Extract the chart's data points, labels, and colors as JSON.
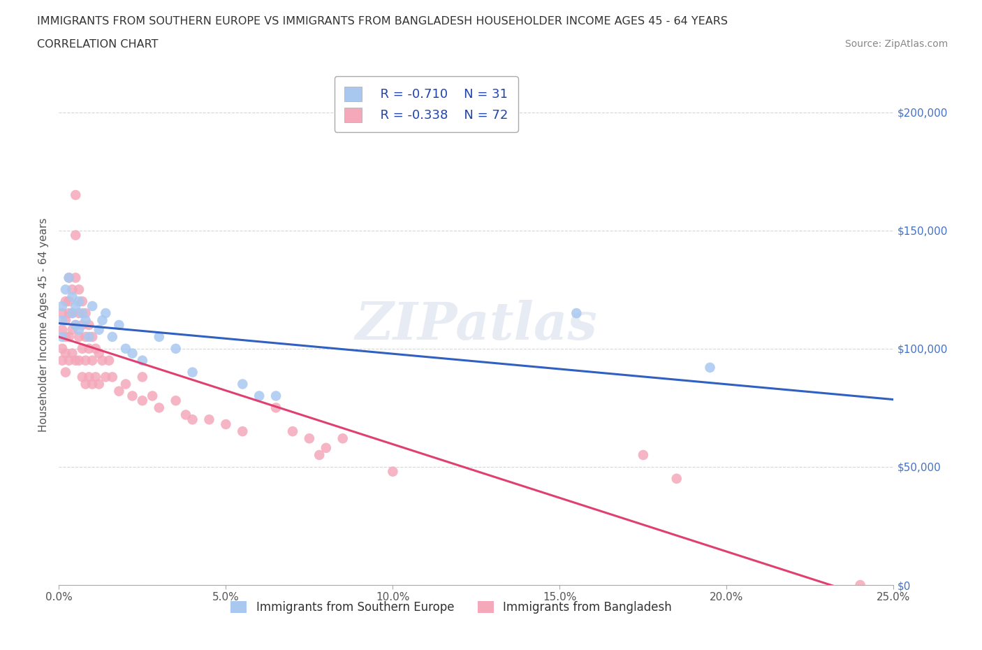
{
  "title_line1": "IMMIGRANTS FROM SOUTHERN EUROPE VS IMMIGRANTS FROM BANGLADESH HOUSEHOLDER INCOME AGES 45 - 64 YEARS",
  "title_line2": "CORRELATION CHART",
  "source_text": "Source: ZipAtlas.com",
  "ylabel": "Householder Income Ages 45 - 64 years",
  "xlim": [
    0.0,
    0.25
  ],
  "ylim": [
    0,
    220000
  ],
  "blue_R": -0.71,
  "blue_N": 31,
  "pink_R": -0.338,
  "pink_N": 72,
  "blue_color": "#A8C8F0",
  "pink_color": "#F4A8BA",
  "blue_line_color": "#3060C0",
  "pink_line_color": "#E04070",
  "yticks": [
    0,
    50000,
    100000,
    150000,
    200000
  ],
  "ytick_labels": [
    "$0",
    "$50,000",
    "$100,000",
    "$150,000",
    "$200,000"
  ],
  "xticks": [
    0.0,
    0.05,
    0.1,
    0.15,
    0.2,
    0.25
  ],
  "xtick_labels": [
    "0.0%",
    "5.0%",
    "10.0%",
    "15.0%",
    "20.0%",
    "25.0%"
  ],
  "blue_scatter_x": [
    0.001,
    0.001,
    0.001,
    0.002,
    0.003,
    0.004,
    0.004,
    0.005,
    0.005,
    0.006,
    0.006,
    0.007,
    0.008,
    0.009,
    0.01,
    0.012,
    0.013,
    0.014,
    0.016,
    0.018,
    0.02,
    0.022,
    0.025,
    0.03,
    0.035,
    0.04,
    0.055,
    0.06,
    0.065,
    0.155,
    0.195
  ],
  "blue_scatter_y": [
    105000,
    112000,
    118000,
    125000,
    130000,
    115000,
    122000,
    118000,
    110000,
    120000,
    108000,
    115000,
    112000,
    105000,
    118000,
    108000,
    112000,
    115000,
    105000,
    110000,
    100000,
    98000,
    95000,
    105000,
    100000,
    90000,
    85000,
    80000,
    80000,
    115000,
    92000
  ],
  "pink_scatter_x": [
    0.001,
    0.001,
    0.001,
    0.001,
    0.002,
    0.002,
    0.002,
    0.002,
    0.002,
    0.003,
    0.003,
    0.003,
    0.003,
    0.003,
    0.004,
    0.004,
    0.004,
    0.004,
    0.005,
    0.005,
    0.005,
    0.005,
    0.005,
    0.006,
    0.006,
    0.006,
    0.006,
    0.007,
    0.007,
    0.007,
    0.007,
    0.008,
    0.008,
    0.008,
    0.008,
    0.009,
    0.009,
    0.009,
    0.01,
    0.01,
    0.01,
    0.011,
    0.011,
    0.012,
    0.012,
    0.013,
    0.014,
    0.015,
    0.016,
    0.018,
    0.02,
    0.022,
    0.025,
    0.025,
    0.028,
    0.03,
    0.035,
    0.038,
    0.04,
    0.045,
    0.05,
    0.055,
    0.065,
    0.07,
    0.075,
    0.078,
    0.08,
    0.085,
    0.1,
    0.175,
    0.185,
    0.24
  ],
  "pink_scatter_y": [
    115000,
    108000,
    100000,
    95000,
    120000,
    112000,
    105000,
    98000,
    90000,
    130000,
    120000,
    115000,
    105000,
    95000,
    125000,
    115000,
    108000,
    98000,
    165000,
    148000,
    130000,
    110000,
    95000,
    125000,
    115000,
    105000,
    95000,
    120000,
    110000,
    100000,
    88000,
    115000,
    105000,
    95000,
    85000,
    110000,
    100000,
    88000,
    105000,
    95000,
    85000,
    100000,
    88000,
    98000,
    85000,
    95000,
    88000,
    95000,
    88000,
    82000,
    85000,
    80000,
    88000,
    78000,
    80000,
    75000,
    78000,
    72000,
    70000,
    70000,
    68000,
    65000,
    75000,
    65000,
    62000,
    55000,
    58000,
    62000,
    48000,
    55000,
    45000,
    0
  ]
}
